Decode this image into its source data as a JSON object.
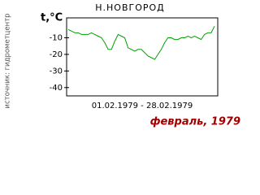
{
  "chart_data": {
    "type": "line",
    "title": "Н.НОВГОРОД",
    "y_label": "t,°C",
    "source": "источник: гидрометцентр",
    "x_label": "01.02.1979 - 28.02.1979",
    "caption": "февраль, 1979",
    "values": [
      -5,
      -6,
      -7,
      -7,
      -8,
      -8,
      -8,
      -7,
      -8,
      -9,
      -10,
      -13,
      -17,
      -17,
      -12,
      -8,
      -9,
      -10,
      -16,
      -17,
      -18,
      -17,
      -17,
      -19,
      -21,
      -22,
      -23,
      -20,
      -17,
      -13,
      -10,
      -10,
      -11,
      -11,
      -10,
      -10,
      -9,
      -10,
      -9,
      -10,
      -11,
      -8,
      -7,
      -7,
      -3
    ],
    "color": "#00a000",
    "ylim": [
      -45,
      2
    ],
    "yticks": [
      -40,
      -30,
      -20,
      -10
    ]
  }
}
